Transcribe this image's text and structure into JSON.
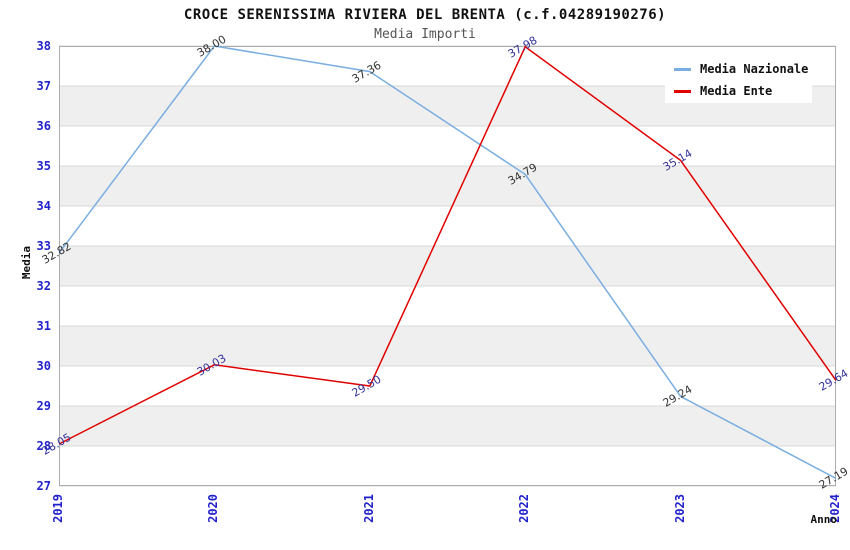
{
  "chart_data": {
    "type": "line",
    "title": "CROCE SERENISSIMA RIVIERA DEL BRENTA (c.f.04289190276)",
    "subtitle": "Media Importi",
    "xlabel": "Anno",
    "ylabel": "Media",
    "categories": [
      "2019",
      "2020",
      "2021",
      "2022",
      "2023",
      "2024"
    ],
    "series": [
      {
        "name": "Media Nazionale",
        "color": "#7aaee0",
        "label_color": "#333333",
        "values": [
          32.82,
          38.0,
          37.36,
          34.79,
          29.24,
          27.19
        ],
        "labels": [
          "32.82",
          "38.00",
          "37.36",
          "34.79",
          "29.24",
          "27.19"
        ]
      },
      {
        "name": "Media Ente",
        "color": "#e00000",
        "label_color": "#333399",
        "values": [
          28.05,
          30.03,
          29.5,
          37.98,
          35.14,
          29.64
        ],
        "labels": [
          "28.05",
          "30.03",
          "29.50",
          "37.98",
          "35.14",
          "29.64"
        ]
      }
    ],
    "ylim": [
      27,
      38
    ],
    "yticks": [
      27,
      28,
      29,
      30,
      31,
      32,
      33,
      34,
      35,
      36,
      37,
      38
    ],
    "grid": "horizontal",
    "legend_position": "top-right",
    "styles": {
      "tick_label_color": "#2222cc",
      "band_fill": "#efefef",
      "grid_line_color": "#d9d9d9",
      "plot_border_color": "#adadad",
      "subtitle_color": "#555555"
    }
  }
}
